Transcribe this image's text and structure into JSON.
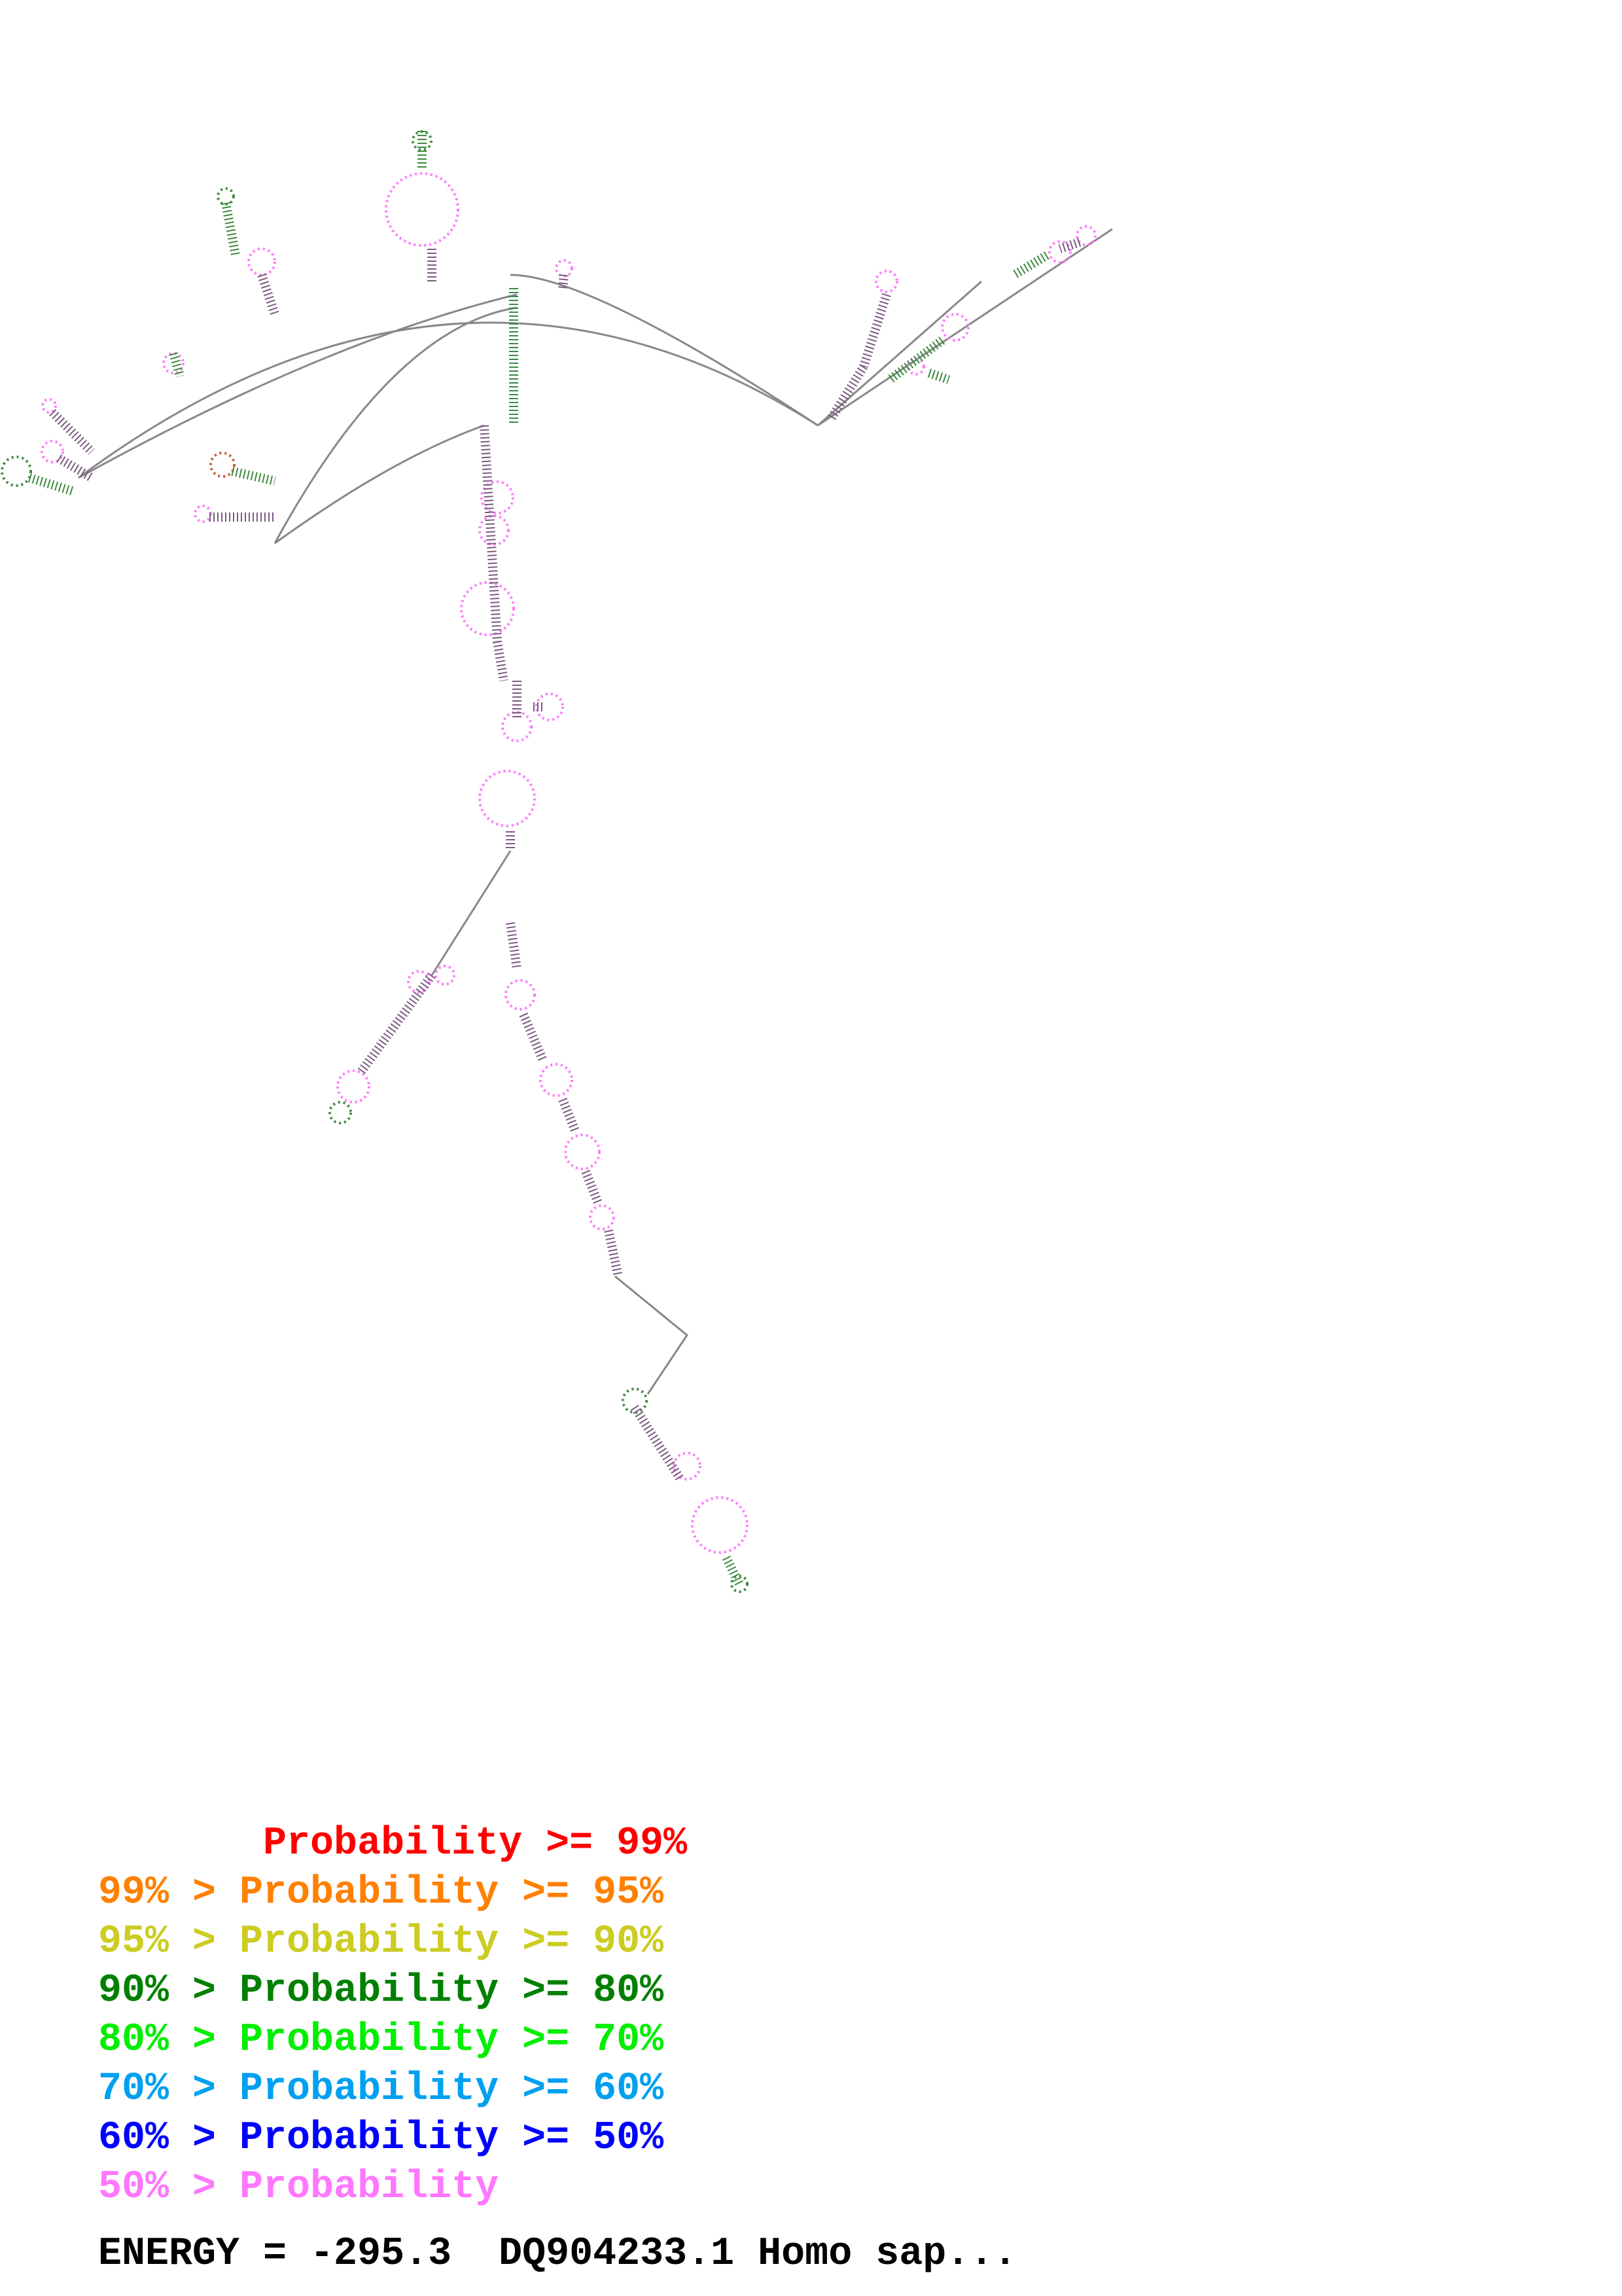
{
  "legend": [
    {
      "prefix": "       ",
      "label": "Probability >= 99%",
      "color": "#ff0000"
    },
    {
      "prefix": "99% > ",
      "label": "Probability >= 95%",
      "color": "#ff8000"
    },
    {
      "prefix": "95% > ",
      "label": "Probability >= 90%",
      "color": "#cccc22"
    },
    {
      "prefix": "90% > ",
      "label": "Probability >= 80%",
      "color": "#008000"
    },
    {
      "prefix": "80% > ",
      "label": "Probability >= 70%",
      "color": "#00ee00"
    },
    {
      "prefix": "70% > ",
      "label": "Probability >= 60%",
      "color": "#00a0f0"
    },
    {
      "prefix": "60% > ",
      "label": "Probability >= 50%",
      "color": "#0000ff"
    },
    {
      "prefix": "50% > ",
      "label": "Probability",
      "color": "#ff77ff"
    }
  ],
  "energy_label": "ENERGY = -295.3",
  "sequence_name": "DQ904233.1 Homo sap...",
  "structure_colors": {
    "line": "#888888",
    "base_default": "#ff77ff",
    "pair": "#555555"
  }
}
